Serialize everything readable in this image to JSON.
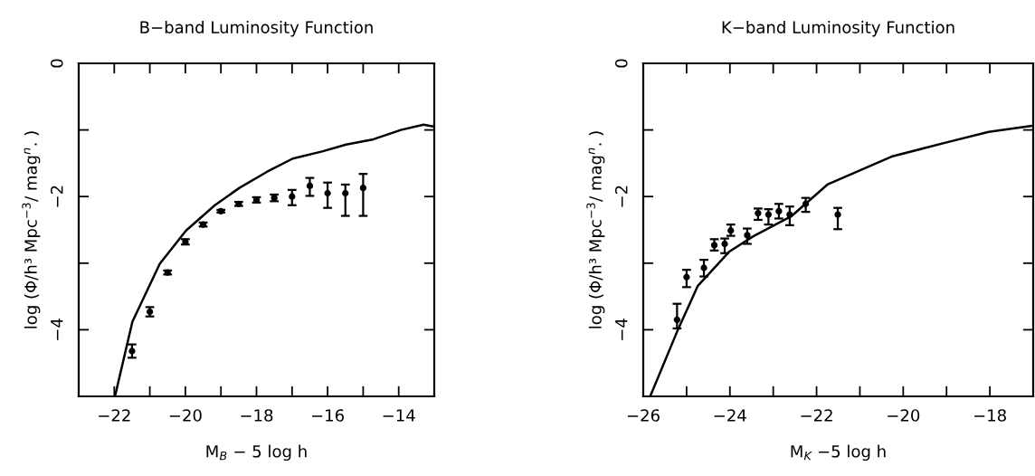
{
  "chart_data": [
    {
      "type": "scatter",
      "title": "B−band Luminosity Function",
      "xlabel": "M$_{B}$ − 5 log h",
      "ylabel": "log (Φ/h³ Mpc$^{−3}$/ mag$^{n}$. )",
      "xlim": [
        -23,
        -13
      ],
      "ylim": [
        -5,
        0
      ],
      "xticks": [
        {
          "value": -23,
          "label": null
        },
        {
          "value": -22,
          "label": "−22"
        },
        {
          "value": -21,
          "label": null
        },
        {
          "value": -20,
          "label": "−20"
        },
        {
          "value": -19,
          "label": null
        },
        {
          "value": -18,
          "label": "−18"
        },
        {
          "value": -17,
          "label": null
        },
        {
          "value": -16,
          "label": "−16"
        },
        {
          "value": -15,
          "label": null
        },
        {
          "value": -14,
          "label": "−14"
        }
      ],
      "yticks": [
        {
          "value": 0,
          "label": "0"
        },
        {
          "value": -1,
          "label": null
        },
        {
          "value": -2,
          "label": "−2"
        },
        {
          "value": -3,
          "label": null
        },
        {
          "value": -4,
          "label": "−4"
        }
      ],
      "grid": false,
      "legend": false,
      "series": [
        {
          "type": "line",
          "color": "#000000",
          "marker": "none",
          "line_style": "solid",
          "x": [
            -21.98,
            -21.49,
            -20.72,
            -19.98,
            -19.17,
            -18.48,
            -17.71,
            -16.98,
            -16.13,
            -15.48,
            -14.71,
            -13.94,
            -13.3,
            -13.0
          ],
          "values": [
            -5.0,
            -3.88,
            -3.01,
            -2.51,
            -2.13,
            -1.87,
            -1.63,
            -1.43,
            -1.32,
            -1.22,
            -1.14,
            -1.0,
            -0.92,
            -0.95
          ]
        },
        {
          "color": "#000000",
          "marker": "circle",
          "x": [
            -21.5,
            -21.0,
            -20.5,
            -20.0,
            -19.5,
            -19.0,
            -18.5,
            -18.0,
            -17.5,
            -17.0,
            -16.5,
            -16.0,
            -15.5,
            -15.0
          ],
          "values": [
            -4.32,
            -3.73,
            -3.14,
            -2.68,
            -2.42,
            -2.22,
            -2.11,
            -2.05,
            -2.02,
            -2.0,
            -1.84,
            -1.95,
            -1.95,
            -1.87
          ],
          "errors": [
            0.1,
            0.07,
            0.03,
            0.04,
            0.03,
            0.02,
            0.03,
            0.04,
            0.05,
            [
              -2.13,
              -1.9
            ],
            [
              -1.99,
              -1.72
            ],
            [
              -2.17,
              -1.79
            ],
            [
              -2.29,
              -1.82
            ],
            [
              -2.29,
              -1.66
            ]
          ]
        }
      ]
    },
    {
      "type": "scatter",
      "title": "K−band Luminosity Function",
      "xlabel": "M$_{K}$ −5 log h",
      "ylabel": "log (Φ/h³ Mpc$^{−3}$/ mag$^{n}$. )",
      "xlim": [
        -26,
        -17
      ],
      "ylim": [
        -5,
        0
      ],
      "xticks": [
        {
          "value": -26,
          "label": "−26"
        },
        {
          "value": -25,
          "label": null
        },
        {
          "value": -24,
          "label": "−24"
        },
        {
          "value": -23,
          "label": null
        },
        {
          "value": -22,
          "label": "−22"
        },
        {
          "value": -21,
          "label": null
        },
        {
          "value": -20,
          "label": "−20"
        },
        {
          "value": -19,
          "label": null
        },
        {
          "value": -18,
          "label": "−18"
        }
      ],
      "yticks": [
        {
          "value": 0,
          "label": "0"
        },
        {
          "value": -1,
          "label": null
        },
        {
          "value": -2,
          "label": "−2"
        },
        {
          "value": -3,
          "label": null
        },
        {
          "value": -4,
          "label": "−4"
        }
      ],
      "grid": false,
      "legend": false,
      "series": [
        {
          "type": "line",
          "color": "#000000",
          "marker": "none",
          "line_style": "solid",
          "x": [
            -25.84,
            -25.22,
            -24.74,
            -24.02,
            -23.47,
            -22.57,
            -21.75,
            -20.27,
            -18.96,
            -18.03,
            -17.05
          ],
          "values": [
            -5.0,
            -4.03,
            -3.34,
            -2.83,
            -2.6,
            -2.29,
            -1.82,
            -1.4,
            -1.18,
            -1.03,
            -0.94
          ]
        },
        {
          "color": "#000000",
          "marker": "circle",
          "x": [
            -25.22,
            -25.0,
            -24.6,
            -24.36,
            -24.12,
            -23.98,
            -23.6,
            -23.35,
            -23.11,
            -22.87,
            -22.62,
            -22.25,
            -21.51
          ],
          "values": [
            -3.85,
            -3.21,
            -3.07,
            -2.73,
            -2.71,
            -2.51,
            -2.58,
            -2.25,
            -2.27,
            -2.22,
            -2.27,
            -2.11,
            -2.27
          ],
          "errors": [
            [
              -3.98,
              -3.61
            ],
            [
              -3.36,
              -3.1
            ],
            [
              -3.2,
              -2.95
            ],
            [
              -2.81,
              -2.64
            ],
            [
              -2.85,
              -2.63
            ],
            [
              -2.59,
              -2.42
            ],
            [
              -2.71,
              -2.48
            ],
            [
              -2.35,
              -2.18
            ],
            [
              -2.42,
              -2.19
            ],
            [
              -2.33,
              -2.11
            ],
            [
              -2.43,
              -2.15
            ],
            [
              -2.23,
              -2.02
            ],
            [
              -2.49,
              -2.17
            ]
          ]
        }
      ]
    }
  ]
}
